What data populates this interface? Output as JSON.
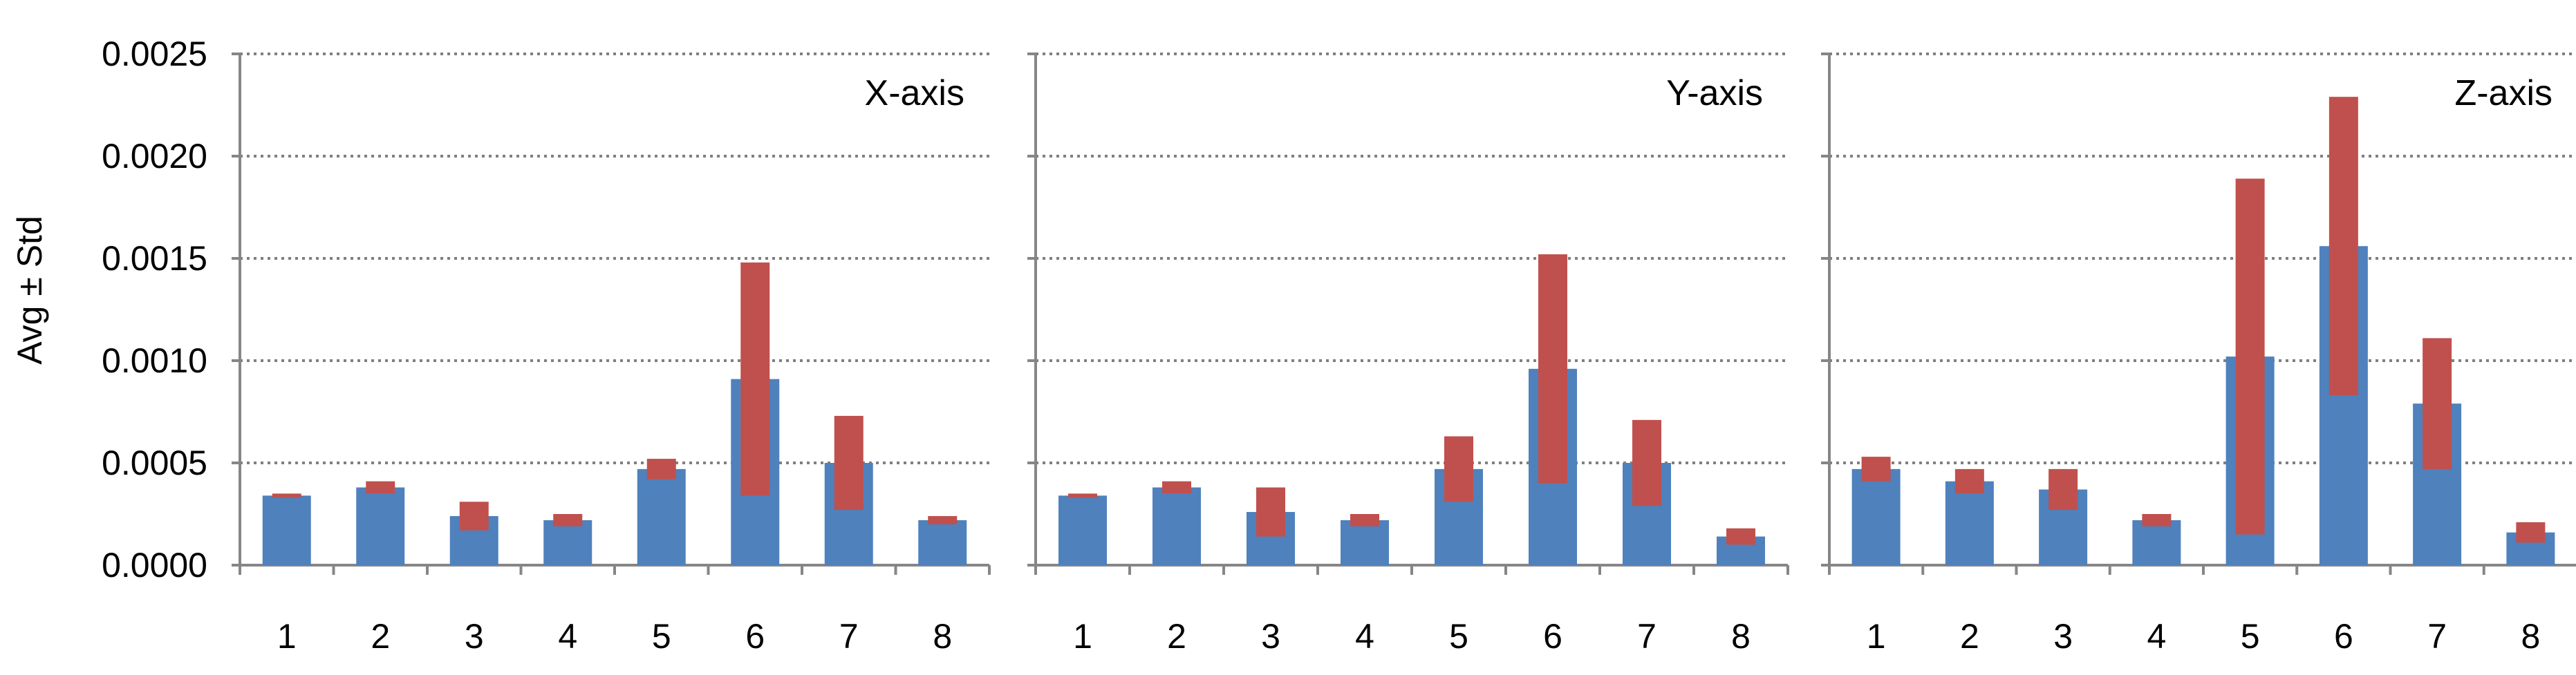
{
  "colors": {
    "bar": "#4f81bd",
    "error_bar": "#c0504d"
  },
  "y_axis": {
    "label": "Avg ± Std",
    "ticks": [
      "0.0000",
      "0.0005",
      "0.0010",
      "0.0015",
      "0.0020",
      "0.0025"
    ]
  },
  "chart_data": [
    {
      "type": "bar",
      "title": "X-axis",
      "categories": [
        "1",
        "2",
        "3",
        "4",
        "5",
        "6",
        "7",
        "8"
      ],
      "values": [
        0.00034,
        0.00038,
        0.00024,
        0.00022,
        0.00047,
        0.00091,
        0.0005,
        0.00022
      ],
      "std": [
        1e-05,
        3e-05,
        7e-05,
        3e-05,
        5e-05,
        0.00057,
        0.00023,
        2e-05
      ],
      "ylim": [
        0,
        0.0025
      ],
      "grid": true
    },
    {
      "type": "bar",
      "title": "Y-axis",
      "categories": [
        "1",
        "2",
        "3",
        "4",
        "5",
        "6",
        "7",
        "8"
      ],
      "values": [
        0.00034,
        0.00038,
        0.00026,
        0.00022,
        0.00047,
        0.00096,
        0.0005,
        0.00014
      ],
      "std": [
        1e-05,
        3e-05,
        0.00012,
        3e-05,
        0.00016,
        0.00056,
        0.00021,
        4e-05
      ],
      "ylim": [
        0,
        0.0025
      ],
      "grid": true
    },
    {
      "type": "bar",
      "title": "Z-axis",
      "categories": [
        "1",
        "2",
        "3",
        "4",
        "5",
        "6",
        "7",
        "8"
      ],
      "values": [
        0.00047,
        0.00041,
        0.00037,
        0.00022,
        0.00102,
        0.00156,
        0.00079,
        0.00016
      ],
      "std": [
        6e-05,
        6e-05,
        0.0001,
        3e-05,
        0.00087,
        0.00073,
        0.00032,
        5e-05
      ],
      "ylim": [
        0,
        0.0025
      ],
      "grid": true
    }
  ]
}
